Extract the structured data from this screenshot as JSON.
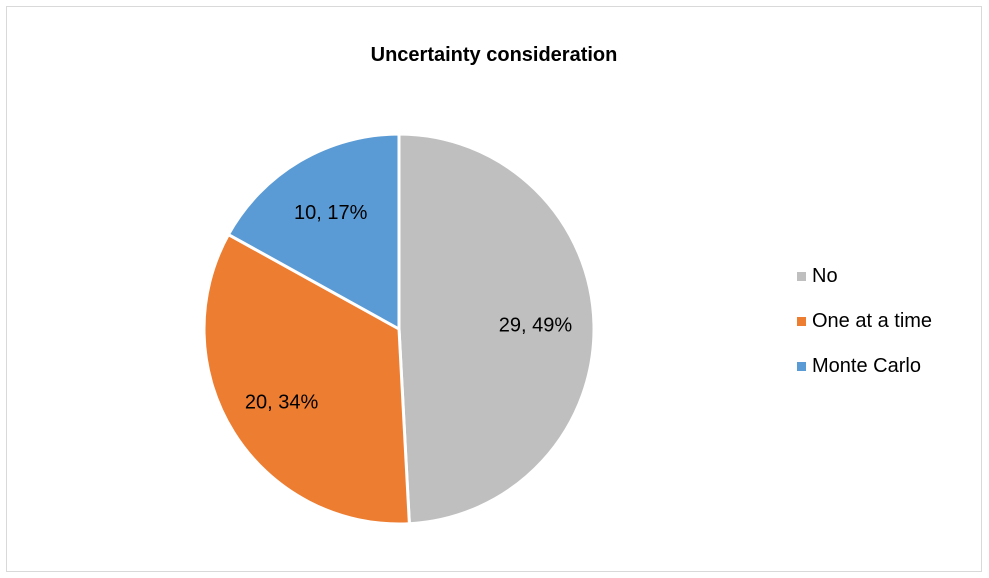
{
  "chart_data": {
    "type": "pie",
    "title": "Uncertainty consideration",
    "slices": [
      {
        "name": "No",
        "value": 29,
        "percent": 49,
        "label": "29, 49%",
        "color": "#bfbfbf"
      },
      {
        "name": "One at a time",
        "value": 20,
        "percent": 34,
        "label": "20, 34%",
        "color": "#ed7d31"
      },
      {
        "name": "Monte Carlo",
        "value": 10,
        "percent": 17,
        "label": "10, 17%",
        "color": "#5b9bd5"
      }
    ],
    "legend": {
      "position": "right"
    }
  }
}
